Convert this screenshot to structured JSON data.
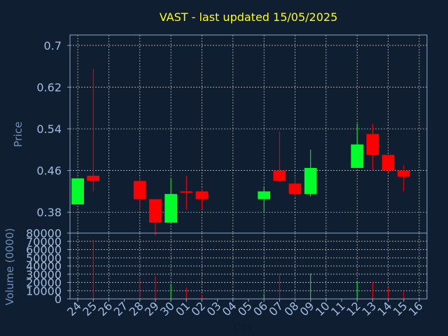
{
  "chart_data": {
    "type": "candlestick",
    "title": "VAST - last updated 15/05/2025",
    "xlabel": "Day",
    "ylabel_price": "Price",
    "ylabel_volume": "Volume (0000)",
    "price_ylim": [
      0.34,
      0.72
    ],
    "price_yticks": [
      "0.7",
      "0.62",
      "0.54",
      "0.46",
      "0.38"
    ],
    "volume_ylim": [
      0,
      80000
    ],
    "volume_yticks": [
      "80000",
      "70000",
      "60000",
      "50000",
      "40000",
      "30000",
      "20000",
      "10000",
      "0"
    ],
    "x_ticks": [
      "24",
      "25",
      "26",
      "27",
      "28",
      "29",
      "30",
      "01",
      "02",
      "03",
      "04",
      "05",
      "06",
      "07",
      "08",
      "09",
      "10",
      "11",
      "12",
      "13",
      "14",
      "15",
      "16"
    ],
    "grid": true,
    "colors": {
      "up": "#00ff2a",
      "down": "#ff0000",
      "title": "#ffff00",
      "tick": "#a3bde0",
      "background": "#0f1e30"
    },
    "candles": [
      {
        "day": "24",
        "open": 0.395,
        "high": 0.445,
        "low": 0.395,
        "close": 0.445
      },
      {
        "day": "25",
        "open": 0.45,
        "high": 0.655,
        "low": 0.42,
        "close": 0.44
      },
      {
        "day": "28",
        "open": 0.44,
        "high": 0.445,
        "low": 0.385,
        "close": 0.405
      },
      {
        "day": "29",
        "open": 0.405,
        "high": 0.405,
        "low": 0.335,
        "close": 0.36
      },
      {
        "day": "30",
        "open": 0.36,
        "high": 0.445,
        "low": 0.36,
        "close": 0.415
      },
      {
        "day": "01",
        "open": 0.42,
        "high": 0.45,
        "low": 0.385,
        "close": 0.418
      },
      {
        "day": "02",
        "open": 0.42,
        "high": 0.425,
        "low": 0.385,
        "close": 0.405
      },
      {
        "day": "06",
        "open": 0.405,
        "high": 0.43,
        "low": 0.38,
        "close": 0.42
      },
      {
        "day": "07",
        "open": 0.46,
        "high": 0.535,
        "low": 0.44,
        "close": 0.44
      },
      {
        "day": "08",
        "open": 0.435,
        "high": 0.45,
        "low": 0.41,
        "close": 0.415
      },
      {
        "day": "09",
        "open": 0.415,
        "high": 0.5,
        "low": 0.41,
        "close": 0.465
      },
      {
        "day": "12",
        "open": 0.465,
        "high": 0.55,
        "low": 0.465,
        "close": 0.51
      },
      {
        "day": "13",
        "open": 0.53,
        "high": 0.55,
        "low": 0.46,
        "close": 0.49
      },
      {
        "day": "14",
        "open": 0.49,
        "high": 0.49,
        "low": 0.455,
        "close": 0.46
      },
      {
        "day": "15",
        "open": 0.46,
        "high": 0.47,
        "low": 0.42,
        "close": 0.448
      }
    ],
    "volumes": [
      {
        "day": "24",
        "value": 0,
        "direction": "up"
      },
      {
        "day": "25",
        "value": 72000,
        "direction": "down"
      },
      {
        "day": "28",
        "value": 25000,
        "direction": "down"
      },
      {
        "day": "29",
        "value": 28000,
        "direction": "down"
      },
      {
        "day": "30",
        "value": 18000,
        "direction": "up"
      },
      {
        "day": "01",
        "value": 14000,
        "direction": "down"
      },
      {
        "day": "02",
        "value": 5000,
        "direction": "down"
      },
      {
        "day": "06",
        "value": 6000,
        "direction": "up"
      },
      {
        "day": "07",
        "value": 31000,
        "direction": "down"
      },
      {
        "day": "08",
        "value": 7000,
        "direction": "down"
      },
      {
        "day": "09",
        "value": 31000,
        "direction": "up"
      },
      {
        "day": "12",
        "value": 22000,
        "direction": "up"
      },
      {
        "day": "13",
        "value": 21000,
        "direction": "down"
      },
      {
        "day": "14",
        "value": 14000,
        "direction": "down"
      },
      {
        "day": "15",
        "value": 9000,
        "direction": "down"
      }
    ]
  }
}
